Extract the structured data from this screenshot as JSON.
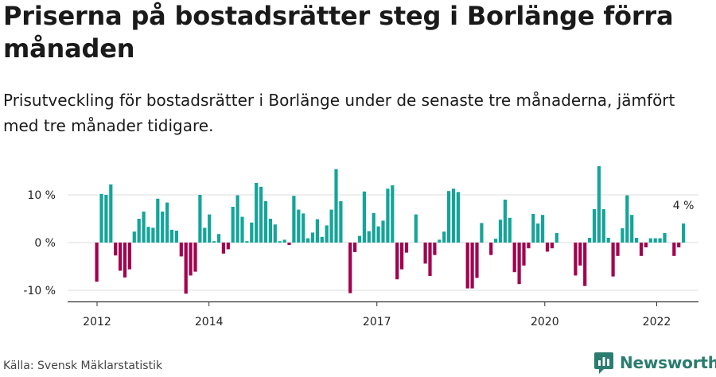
{
  "header": {
    "title": "Priserna på bostadsrätter steg i Borlänge förra månaden",
    "subtitle": "Prisutveckling för bostadsrätter i Borlänge under de senaste tre månaderna, jämfört med tre månader tidigare."
  },
  "footer": {
    "source": "Källa: Svensk Mäklarstatistik",
    "brand": "Newsworthy"
  },
  "colors": {
    "positive": "#14a59a",
    "negative": "#a3004e",
    "grid": "#dddddd",
    "axis": "#333333",
    "brand": "#2a7c6f"
  },
  "chart_data": {
    "type": "bar",
    "x_start": "2012-01",
    "x_end": "2022-04",
    "ylim": [
      -12,
      16
    ],
    "y_ticks": [
      -10,
      0,
      10
    ],
    "y_tick_labels": [
      "-10 %",
      "0 %",
      "10 %"
    ],
    "x_ticks": [
      "2012",
      "2014",
      "2017",
      "2020",
      "2022"
    ],
    "grid": true,
    "last_value_label": "4 %",
    "values": [
      -8.2,
      10.2,
      10.0,
      12.2,
      -2.7,
      -5.9,
      -7.3,
      -5.6,
      2.3,
      5.0,
      6.5,
      3.3,
      3.1,
      9.2,
      6.5,
      8.4,
      2.7,
      2.5,
      -2.9,
      -10.7,
      -6.9,
      -6.1,
      10.0,
      3.1,
      5.9,
      0.3,
      1.8,
      -2.3,
      -1.4,
      7.5,
      9.9,
      5.4,
      0.3,
      4.2,
      12.5,
      11.7,
      8.7,
      5.0,
      3.8,
      0.3,
      0.6,
      -0.5,
      9.8,
      6.9,
      6.1,
      0.9,
      2.1,
      4.9,
      1.2,
      3.6,
      6.9,
      15.4,
      8.7,
      0,
      -10.6,
      -2.0,
      1.4,
      10.7,
      2.4,
      6.2,
      3.4,
      4.6,
      11.3,
      12.0,
      -7.7,
      -5.6,
      -2.1,
      0,
      5.9,
      0,
      -4.4,
      -7.0,
      -2.6,
      0.6,
      2.3,
      10.8,
      11.3,
      10.6,
      0,
      -9.6,
      -9.6,
      -7.4,
      4.1,
      0,
      -2.6,
      0.8,
      4.8,
      9.0,
      5.2,
      -6.2,
      -8.7,
      -4.8,
      -1.2,
      6.0,
      4.0,
      5.8,
      -1.9,
      -1.2,
      2.0,
      0,
      0,
      0,
      -6.9,
      -4.8,
      -9.1,
      1.0,
      7.0,
      16.0,
      7.0,
      1.0,
      -7.1,
      -2.8,
      3.0,
      9.9,
      5.8,
      1.0,
      -2.8,
      -1.0,
      0.9,
      0.9,
      0.9,
      2.0,
      0,
      -2.8,
      -1.0,
      4.0
    ]
  }
}
